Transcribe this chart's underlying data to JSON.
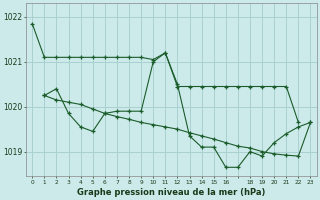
{
  "bg_color": "#cceaea",
  "grid_color": "#aad0d0",
  "line_color": "#1a5c2a",
  "title": "Graphe pression niveau de la mer (hPa)",
  "ylabel_ticks": [
    1019,
    1020,
    1021,
    1022
  ],
  "xlim": [
    -0.5,
    23.5
  ],
  "ylim": [
    1018.45,
    1022.3
  ],
  "series": [
    {
      "x": [
        0,
        1,
        2,
        3,
        4,
        5,
        6,
        7,
        8,
        9,
        10,
        11,
        12,
        13,
        14,
        15,
        16,
        17,
        18,
        19,
        20,
        21,
        22
      ],
      "y": [
        1021.85,
        1021.1,
        1021.1,
        1021.1,
        1021.1,
        1021.1,
        1021.1,
        1021.1,
        1021.1,
        1021.1,
        1021.05,
        1021.2,
        1020.45,
        1020.45,
        1020.45,
        1020.45,
        1020.45,
        1020.45,
        1020.45,
        1020.45,
        1020.45,
        1020.45,
        1019.65
      ]
    },
    {
      "x": [
        1,
        2,
        3,
        4,
        5,
        6,
        7,
        8,
        9,
        10,
        11,
        12,
        13,
        14,
        15,
        16,
        17,
        18,
        19,
        20,
        21,
        22,
        23
      ],
      "y": [
        1020.25,
        1020.4,
        1019.85,
        1019.55,
        1019.45,
        1019.85,
        1019.9,
        1019.9,
        1019.9,
        1021.0,
        1021.2,
        1020.5,
        1019.35,
        1019.1,
        1019.1,
        1018.65,
        1018.65,
        1019.0,
        1018.9,
        1019.2,
        1019.4,
        1019.55,
        1019.65
      ]
    },
    {
      "x": [
        1,
        2,
        3,
        4,
        5,
        6,
        7,
        8,
        9,
        10,
        11,
        12,
        13,
        14,
        15,
        16,
        17,
        18,
        19,
        20,
        21,
        22,
        23
      ],
      "y": [
        1020.25,
        1020.15,
        1020.1,
        1020.05,
        1019.95,
        1019.85,
        1019.78,
        1019.72,
        1019.65,
        1019.6,
        1019.55,
        1019.5,
        1019.42,
        1019.35,
        1019.28,
        1019.2,
        1019.12,
        1019.08,
        1019.0,
        1018.95,
        1018.92,
        1018.9,
        1019.65
      ]
    }
  ],
  "xtick_labels": [
    "0",
    "1",
    "2",
    "3",
    "4",
    "5",
    "6",
    "7",
    "8",
    "9",
    "10",
    "11",
    "12",
    "13",
    "14",
    "15",
    "16",
    "",
    "18",
    "19",
    "20",
    "21",
    "22",
    "23"
  ],
  "xtick_positions": [
    0,
    1,
    2,
    3,
    4,
    5,
    6,
    7,
    8,
    9,
    10,
    11,
    12,
    13,
    14,
    15,
    16,
    17,
    18,
    19,
    20,
    21,
    22,
    23
  ]
}
